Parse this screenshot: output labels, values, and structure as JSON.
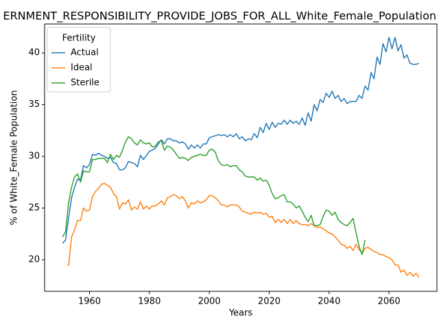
{
  "chart_data": {
    "type": "line",
    "title": "ERNMENT_RESPONSIBILITY_PROVIDE_JOBS_FOR_ALL_White_Female_Population",
    "x_label": "Years",
    "y_label": "% of White_Female Population",
    "legend_title": "Fertility",
    "legend_position": "upper left",
    "xlim": [
      1945,
      2076
    ],
    "xticks": [
      1960,
      1980,
      2000,
      2020,
      2040,
      2060
    ],
    "ylim": [
      16.95,
      42.8
    ],
    "yticks": [
      20,
      25,
      30,
      35,
      40
    ],
    "x": [
      1951,
      1952,
      1953,
      1954,
      1955,
      1956,
      1957,
      1958,
      1959,
      1960,
      1961,
      1962,
      1963,
      1964,
      1965,
      1966,
      1967,
      1968,
      1969,
      1970,
      1971,
      1972,
      1973,
      1974,
      1975,
      1976,
      1977,
      1978,
      1979,
      1980,
      1981,
      1982,
      1983,
      1984,
      1985,
      1986,
      1987,
      1988,
      1989,
      1990,
      1991,
      1992,
      1993,
      1994,
      1995,
      1996,
      1997,
      1998,
      1999,
      2000,
      2001,
      2002,
      2003,
      2004,
      2005,
      2006,
      2007,
      2008,
      2009,
      2010,
      2011,
      2012,
      2013,
      2014,
      2015,
      2016,
      2017,
      2018,
      2019,
      2020,
      2021,
      2022,
      2023,
      2024,
      2025,
      2026,
      2027,
      2028,
      2029,
      2030,
      2031,
      2032,
      2033,
      2034,
      2035,
      2036,
      2037,
      2038,
      2039,
      2040,
      2041,
      2042,
      2043,
      2044,
      2045,
      2046,
      2047,
      2048,
      2049,
      2050,
      2051,
      2052,
      2053,
      2054,
      2055,
      2056,
      2057,
      2058,
      2059,
      2060,
      2061,
      2062,
      2063,
      2064,
      2065,
      2066,
      2067,
      2068,
      2069,
      2070
    ],
    "series": [
      {
        "name": "Actual",
        "color": "#1f77b4",
        "values": [
          21.6,
          21.9,
          24.0,
          26.0,
          27.0,
          27.8,
          27.7,
          29.1,
          28.9,
          29.2,
          30.2,
          30.1,
          30.3,
          30.1,
          30.0,
          29.8,
          29.9,
          29.4,
          29.3,
          28.7,
          28.7,
          28.9,
          29.5,
          29.4,
          29.3,
          29.0,
          30.1,
          29.7,
          30.1,
          30.5,
          30.6,
          30.8,
          31.2,
          31.6,
          31.2,
          31.7,
          31.7,
          31.5,
          31.5,
          31.3,
          31.4,
          31.2,
          30.7,
          31.1,
          30.8,
          31.1,
          30.8,
          31.2,
          31.2,
          31.8,
          31.9,
          32.0,
          32.1,
          32.0,
          32.1,
          31.9,
          32.1,
          31.9,
          32.2,
          31.7,
          31.9,
          31.5,
          31.7,
          31.6,
          32.2,
          31.8,
          32.8,
          32.3,
          33.2,
          32.6,
          33.3,
          32.8,
          33.2,
          33.1,
          33.5,
          33.1,
          33.5,
          33.2,
          33.4,
          33.1,
          33.7,
          33.0,
          34.2,
          33.4,
          35.0,
          34.4,
          35.5,
          35.2,
          36.1,
          35.7,
          36.3,
          35.6,
          35.9,
          35.3,
          35.6,
          35.1,
          35.3,
          35.3,
          35.3,
          35.9,
          35.6,
          36.8,
          36.4,
          38.1,
          37.5,
          39.6,
          38.9,
          40.9,
          40.1,
          41.5,
          40.4,
          41.5,
          40.2,
          40.8,
          39.5,
          39.8,
          39.0,
          38.9,
          38.9,
          39.0
        ]
      },
      {
        "name": "Ideal",
        "color": "#ff7f0e",
        "values": [
          null,
          null,
          19.4,
          22.2,
          22.9,
          23.8,
          23.8,
          25.0,
          24.7,
          24.8,
          26.1,
          26.6,
          26.9,
          27.3,
          27.4,
          27.2,
          27.0,
          26.4,
          26.1,
          24.9,
          25.5,
          25.4,
          25.8,
          24.8,
          25.1,
          24.9,
          25.6,
          24.9,
          25.2,
          24.9,
          25.2,
          25.2,
          25.4,
          25.7,
          25.3,
          26.0,
          26.1,
          26.3,
          26.2,
          25.9,
          26.1,
          25.7,
          25.0,
          25.5,
          25.4,
          25.7,
          25.5,
          25.6,
          25.8,
          26.2,
          26.2,
          26.0,
          25.7,
          25.3,
          25.3,
          25.1,
          25.3,
          25.3,
          25.3,
          25.1,
          24.7,
          24.6,
          24.5,
          24.4,
          24.6,
          24.5,
          24.6,
          24.4,
          24.5,
          24.1,
          24.2,
          23.6,
          23.9,
          23.6,
          23.9,
          23.5,
          23.9,
          23.5,
          23.8,
          23.5,
          23.4,
          23.4,
          23.3,
          23.5,
          23.3,
          23.1,
          23.2,
          23.0,
          22.8,
          22.6,
          22.5,
          22.2,
          21.9,
          21.5,
          21.4,
          21.1,
          21.3,
          20.9,
          21.5,
          21.0,
          20.6,
          21.1,
          21.2,
          21.0,
          20.8,
          20.7,
          20.5,
          20.5,
          20.3,
          20.2,
          20.0,
          19.5,
          19.5,
          18.8,
          19.0,
          18.5,
          18.8,
          18.4,
          18.7,
          18.3
        ]
      },
      {
        "name": "Sterile",
        "color": "#2ca02c",
        "values": [
          22.2,
          22.7,
          25.5,
          27.0,
          28.0,
          28.3,
          27.5,
          28.6,
          28.5,
          28.5,
          29.7,
          29.7,
          29.8,
          29.8,
          29.8,
          29.4,
          30.2,
          29.7,
          30.1,
          29.9,
          30.6,
          31.4,
          31.9,
          31.7,
          31.3,
          31.1,
          31.6,
          31.3,
          31.2,
          31.3,
          30.9,
          31.0,
          31.4,
          31.5,
          30.6,
          31.0,
          30.9,
          30.6,
          30.2,
          29.8,
          29.9,
          29.8,
          29.6,
          29.9,
          30.0,
          30.1,
          30.2,
          30.1,
          30.1,
          30.6,
          30.7,
          30.4,
          29.6,
          29.2,
          29.1,
          29.2,
          29.0,
          29.1,
          29.1,
          28.7,
          28.5,
          28.1,
          28.0,
          28.0,
          28.0,
          27.7,
          27.9,
          27.6,
          27.7,
          27.2,
          26.4,
          25.9,
          26.0,
          26.2,
          26.3,
          25.6,
          25.6,
          25.4,
          25.0,
          25.2,
          24.7,
          24.1,
          23.7,
          24.3,
          23.3,
          23.3,
          23.4,
          24.2,
          24.8,
          24.7,
          24.3,
          24.6,
          23.9,
          23.6,
          23.4,
          23.3,
          23.6,
          24.0,
          22.6,
          21.3,
          20.5,
          21.9,
          null,
          null,
          null,
          null,
          null,
          null,
          null,
          null,
          null,
          null,
          null,
          null,
          null,
          null,
          null,
          null,
          null,
          null
        ]
      }
    ]
  }
}
